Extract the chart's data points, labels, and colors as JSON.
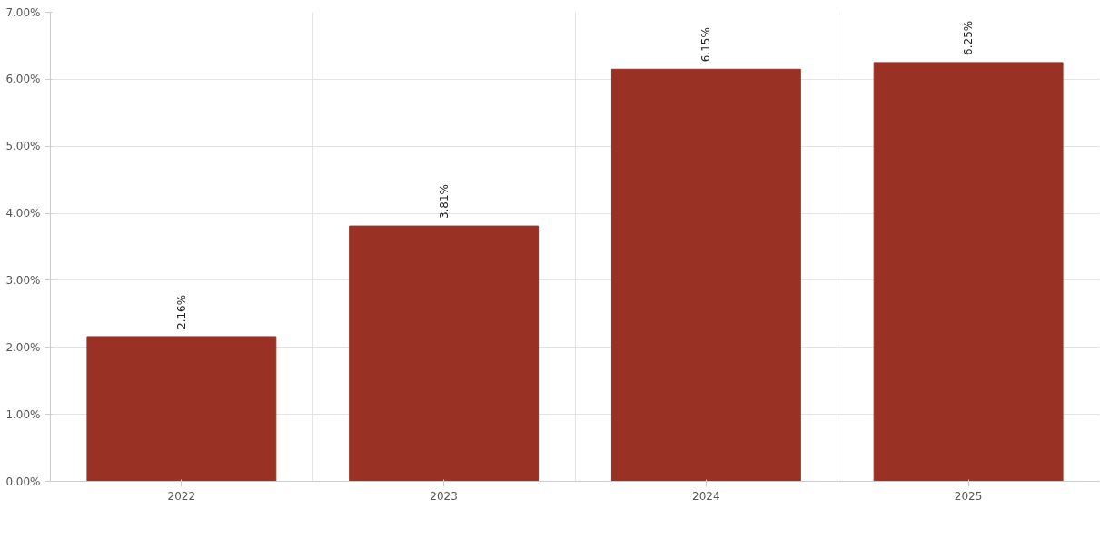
{
  "chart_data": {
    "type": "bar",
    "categories": [
      "2022",
      "2023",
      "2024",
      "2025"
    ],
    "series": [
      {
        "color": "#993124",
        "values": [
          2.16,
          3.81,
          6.15,
          6.25
        ]
      }
    ],
    "value_labels": [
      "2.16%",
      "3.81%",
      "6.15%",
      "6.25%"
    ],
    "ylim": [
      0,
      7
    ],
    "yticks": [
      {
        "value": 0,
        "label": "0.00%"
      },
      {
        "value": 1,
        "label": "1.00%"
      },
      {
        "value": 2,
        "label": "2.00%"
      },
      {
        "value": 3,
        "label": "3.00%"
      },
      {
        "value": 4,
        "label": "4.00%"
      },
      {
        "value": 5,
        "label": "5.00%"
      },
      {
        "value": 6,
        "label": "6.00%"
      },
      {
        "value": 7,
        "label": "7.00%"
      }
    ],
    "grid": true
  }
}
